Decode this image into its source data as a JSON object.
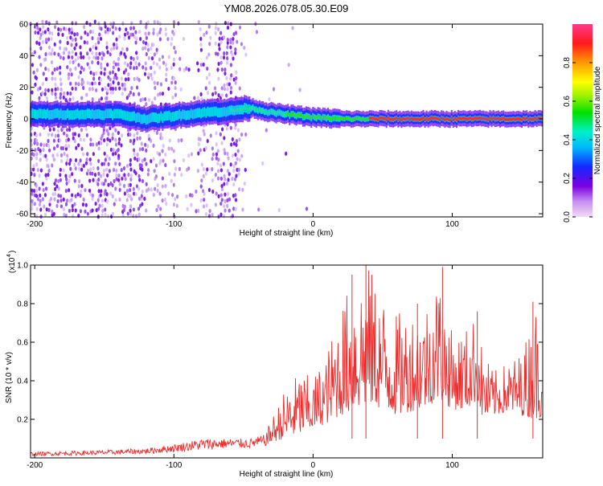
{
  "chart_data": [
    {
      "type": "heatmap",
      "title": "YM08.2026.078.05.30.E09",
      "xlabel": "Height of straight line (km)",
      "ylabel": "Frequency (Hz)",
      "xlim": [
        -203,
        165
      ],
      "ylim": [
        -62,
        60
      ],
      "xticks": [
        -200,
        -100,
        0,
        100
      ],
      "yticks": [
        -60,
        -40,
        -20,
        0,
        20,
        40,
        60
      ],
      "ridge": {
        "description_x": [
          -203,
          -180,
          -160,
          -140,
          -120,
          -100,
          -80,
          -60,
          -45,
          -30,
          -10,
          0,
          20,
          40,
          60,
          80,
          100,
          120,
          140,
          165
        ],
        "center_freq": [
          3,
          3,
          3,
          3,
          0,
          2,
          4,
          5,
          7,
          4,
          2,
          1,
          0,
          0,
          0,
          0,
          0,
          0,
          0,
          0
        ]
      },
      "colorbar": {
        "label": "Normalized spectral amplitude",
        "ticks": [
          "0.0",
          "0.2",
          "0.4",
          "0.6",
          "0.8"
        ],
        "tick_values": [
          0.0,
          0.2,
          0.4,
          0.6,
          0.8
        ],
        "range": [
          0,
          1
        ]
      }
    },
    {
      "type": "line",
      "xlabel": "Height of straight line (km)",
      "ylabel": "SNR (10 * v/v)",
      "multiplier_label": "(x10",
      "multiplier_exp": "4",
      "xlim": [
        -203,
        165
      ],
      "ylim": [
        0,
        1.0
      ],
      "xticks": [
        -200,
        -100,
        0,
        100
      ],
      "yticks": [
        "0.2",
        "0.4",
        "0.6",
        "0.8",
        "1.0"
      ],
      "ytick_values": [
        0.2,
        0.4,
        0.6,
        0.8,
        1.0
      ],
      "color": "#ee2d2d",
      "envelope": {
        "x": [
          -203,
          -150,
          -120,
          -100,
          -80,
          -60,
          -45,
          -35,
          -30,
          -20,
          -10,
          0,
          10,
          20,
          30,
          40,
          50,
          60,
          70,
          80,
          90,
          95,
          100,
          110,
          118,
          122,
          130,
          140,
          150,
          160,
          165
        ],
        "base": [
          0.01,
          0.015,
          0.02,
          0.03,
          0.04,
          0.05,
          0.05,
          0.06,
          0.08,
          0.1,
          0.12,
          0.15,
          0.18,
          0.22,
          0.25,
          0.28,
          0.25,
          0.22,
          0.24,
          0.26,
          0.3,
          0.28,
          0.25,
          0.25,
          0.3,
          0.2,
          0.22,
          0.24,
          0.22,
          0.2,
          0.22
        ],
        "peak": [
          0.03,
          0.04,
          0.05,
          0.07,
          0.1,
          0.1,
          0.1,
          0.12,
          0.2,
          0.36,
          0.45,
          0.42,
          0.55,
          0.8,
          0.95,
          1.0,
          0.85,
          0.75,
          0.78,
          0.8,
          0.98,
          0.8,
          0.65,
          0.68,
          0.75,
          0.55,
          0.45,
          0.5,
          0.55,
          0.8,
          0.6
        ]
      },
      "highlights": [
        {
          "x": 28,
          "y": 0.95
        },
        {
          "x": 38,
          "y": 1.0
        },
        {
          "x": 93,
          "y": 0.99
        },
        {
          "x": 118,
          "y": 0.76
        },
        {
          "x": 158,
          "y": 0.81
        },
        {
          "x": 75,
          "y": 0.8
        }
      ]
    }
  ]
}
